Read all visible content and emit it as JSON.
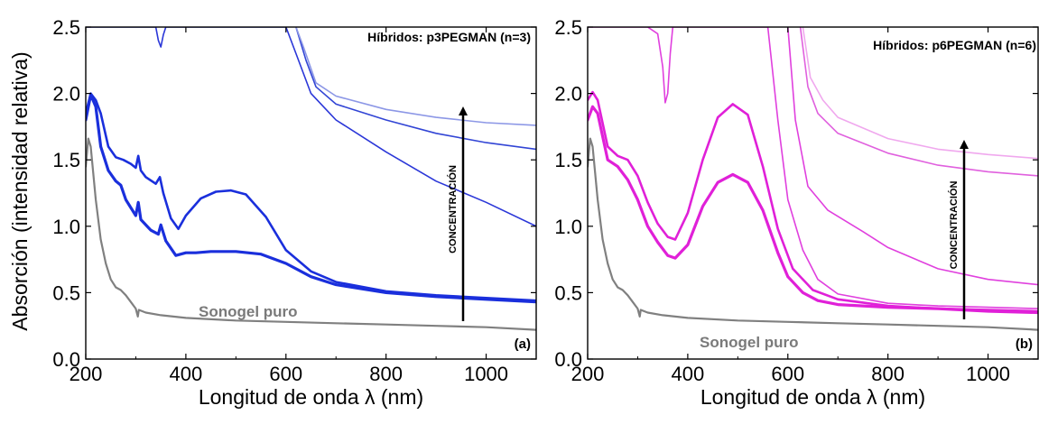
{
  "figure": {
    "ylabel": "Absorción (intensidad relativa)"
  },
  "chart_data": [
    {
      "type": "line",
      "panel_label": "(a)",
      "title": "Híbridos: p3PEGMAN (n=3)",
      "xlabel": "Longitud de onda λ (nm)",
      "ylabel": "Absorción (intensidad relativa)",
      "xlim": [
        200,
        1100
      ],
      "ylim": [
        0,
        2.5
      ],
      "xticks": [
        "200",
        "400",
        "600",
        "800",
        "1000"
      ],
      "yticks": [
        "0.0",
        "0.5",
        "1.0",
        "1.5",
        "2.0",
        "2.5"
      ],
      "annotation": "Sonogel puro",
      "arrow_label": "CONCENTRACIÓN",
      "series": [
        {
          "color": "#808080",
          "width": 2.2,
          "points": [
            [
              200,
              1.45
            ],
            [
              205,
              1.66
            ],
            [
              210,
              1.6
            ],
            [
              220,
              1.2
            ],
            [
              230,
              0.9
            ],
            [
              240,
              0.72
            ],
            [
              250,
              0.6
            ],
            [
              260,
              0.54
            ],
            [
              270,
              0.52
            ],
            [
              280,
              0.48
            ],
            [
              290,
              0.43
            ],
            [
              300,
              0.38
            ],
            [
              304,
              0.32
            ],
            [
              306,
              0.37
            ],
            [
              320,
              0.35
            ],
            [
              350,
              0.33
            ],
            [
              400,
              0.31
            ],
            [
              500,
              0.29
            ],
            [
              600,
              0.28
            ],
            [
              700,
              0.27
            ],
            [
              800,
              0.26
            ],
            [
              900,
              0.25
            ],
            [
              1000,
              0.24
            ],
            [
              1100,
              0.22
            ]
          ]
        },
        {
          "color": "#1a2fdc",
          "width": 3.2,
          "points": [
            [
              200,
              1.8
            ],
            [
              210,
              1.99
            ],
            [
              220,
              1.9
            ],
            [
              230,
              1.6
            ],
            [
              245,
              1.42
            ],
            [
              260,
              1.34
            ],
            [
              270,
              1.31
            ],
            [
              280,
              1.2
            ],
            [
              300,
              1.08
            ],
            [
              305,
              1.18
            ],
            [
              310,
              1.05
            ],
            [
              330,
              0.97
            ],
            [
              345,
              0.94
            ],
            [
              350,
              1.01
            ],
            [
              360,
              0.89
            ],
            [
              380,
              0.78
            ],
            [
              400,
              0.8
            ],
            [
              420,
              0.8
            ],
            [
              450,
              0.81
            ],
            [
              500,
              0.81
            ],
            [
              550,
              0.79
            ],
            [
              600,
              0.72
            ],
            [
              650,
              0.62
            ],
            [
              700,
              0.56
            ],
            [
              800,
              0.5
            ],
            [
              900,
              0.47
            ],
            [
              1000,
              0.45
            ],
            [
              1100,
              0.43
            ]
          ]
        },
        {
          "color": "#1a2fdc",
          "width": 2.6,
          "points": [
            [
              200,
              1.85
            ],
            [
              210,
              2.0
            ],
            [
              220,
              1.95
            ],
            [
              230,
              1.85
            ],
            [
              245,
              1.6
            ],
            [
              260,
              1.52
            ],
            [
              275,
              1.5
            ],
            [
              290,
              1.47
            ],
            [
              300,
              1.44
            ],
            [
              305,
              1.53
            ],
            [
              310,
              1.42
            ],
            [
              320,
              1.37
            ],
            [
              340,
              1.32
            ],
            [
              348,
              1.37
            ],
            [
              355,
              1.25
            ],
            [
              370,
              1.06
            ],
            [
              385,
              0.98
            ],
            [
              400,
              1.08
            ],
            [
              430,
              1.21
            ],
            [
              460,
              1.26
            ],
            [
              490,
              1.27
            ],
            [
              520,
              1.24
            ],
            [
              560,
              1.07
            ],
            [
              600,
              0.82
            ],
            [
              650,
              0.66
            ],
            [
              700,
              0.58
            ],
            [
              800,
              0.51
            ],
            [
              900,
              0.48
            ],
            [
              1000,
              0.46
            ],
            [
              1100,
              0.44
            ]
          ]
        },
        {
          "color": "#2b37d8",
          "width": 1.6,
          "points": [
            [
              200,
              2.5
            ],
            [
              340,
              2.5
            ],
            [
              345,
              2.4
            ],
            [
              350,
              2.35
            ],
            [
              355,
              2.44
            ],
            [
              360,
              2.5
            ],
            [
              600,
              2.5
            ],
            [
              620,
              2.3
            ],
            [
              650,
              2.0
            ],
            [
              700,
              1.8
            ],
            [
              800,
              1.56
            ],
            [
              900,
              1.34
            ],
            [
              1000,
              1.18
            ],
            [
              1100,
              1.0
            ]
          ]
        },
        {
          "color": "#3245d5",
          "width": 1.6,
          "points": [
            [
              620,
              2.5
            ],
            [
              640,
              2.25
            ],
            [
              660,
              2.05
            ],
            [
              700,
              1.92
            ],
            [
              800,
              1.8
            ],
            [
              900,
              1.7
            ],
            [
              1000,
              1.63
            ],
            [
              1100,
              1.58
            ]
          ]
        },
        {
          "color": "#8c97e6",
          "width": 1.6,
          "points": [
            [
              620,
              2.5
            ],
            [
              635,
              2.35
            ],
            [
              660,
              2.08
            ],
            [
              700,
              1.98
            ],
            [
              800,
              1.88
            ],
            [
              900,
              1.82
            ],
            [
              1000,
              1.78
            ],
            [
              1100,
              1.76
            ]
          ]
        }
      ]
    },
    {
      "type": "line",
      "panel_label": "(b)",
      "title": "Híbridos: p6PEGMAN (n=6)",
      "xlabel": "Longitud de onda λ (nm)",
      "ylabel": "",
      "xlim": [
        200,
        1100
      ],
      "ylim": [
        0,
        2.5
      ],
      "xticks": [
        "200",
        "400",
        "600",
        "800",
        "1000"
      ],
      "yticks": [
        "0.0",
        "0.5",
        "1.0",
        "1.5",
        "2.0",
        "2.5"
      ],
      "annotation": "Sonogel puro",
      "arrow_label": "CONCENTRACIÓN",
      "series": [
        {
          "color": "#808080",
          "width": 2.2,
          "points": [
            [
              200,
              1.45
            ],
            [
              205,
              1.66
            ],
            [
              210,
              1.6
            ],
            [
              220,
              1.2
            ],
            [
              230,
              0.9
            ],
            [
              240,
              0.72
            ],
            [
              250,
              0.6
            ],
            [
              260,
              0.54
            ],
            [
              270,
              0.52
            ],
            [
              280,
              0.48
            ],
            [
              290,
              0.43
            ],
            [
              300,
              0.38
            ],
            [
              304,
              0.32
            ],
            [
              306,
              0.37
            ],
            [
              320,
              0.35
            ],
            [
              350,
              0.33
            ],
            [
              400,
              0.31
            ],
            [
              500,
              0.29
            ],
            [
              600,
              0.28
            ],
            [
              700,
              0.27
            ],
            [
              800,
              0.26
            ],
            [
              900,
              0.25
            ],
            [
              1000,
              0.24
            ],
            [
              1100,
              0.22
            ]
          ]
        },
        {
          "color": "#e020d8",
          "width": 3.2,
          "points": [
            [
              200,
              1.8
            ],
            [
              210,
              1.9
            ],
            [
              220,
              1.85
            ],
            [
              240,
              1.5
            ],
            [
              260,
              1.45
            ],
            [
              280,
              1.35
            ],
            [
              300,
              1.2
            ],
            [
              320,
              1.0
            ],
            [
              340,
              0.88
            ],
            [
              360,
              0.78
            ],
            [
              375,
              0.76
            ],
            [
              400,
              0.86
            ],
            [
              430,
              1.15
            ],
            [
              460,
              1.33
            ],
            [
              490,
              1.39
            ],
            [
              520,
              1.33
            ],
            [
              550,
              1.12
            ],
            [
              580,
              0.8
            ],
            [
              600,
              0.62
            ],
            [
              630,
              0.5
            ],
            [
              660,
              0.44
            ],
            [
              700,
              0.41
            ],
            [
              800,
              0.39
            ],
            [
              900,
              0.38
            ],
            [
              1000,
              0.36
            ],
            [
              1100,
              0.35
            ]
          ]
        },
        {
          "color": "#e020d8",
          "width": 2.6,
          "points": [
            [
              200,
              1.95
            ],
            [
              210,
              2.01
            ],
            [
              220,
              1.95
            ],
            [
              240,
              1.6
            ],
            [
              260,
              1.53
            ],
            [
              280,
              1.5
            ],
            [
              300,
              1.38
            ],
            [
              320,
              1.18
            ],
            [
              340,
              1.02
            ],
            [
              360,
              0.92
            ],
            [
              375,
              0.9
            ],
            [
              400,
              1.1
            ],
            [
              430,
              1.5
            ],
            [
              460,
              1.82
            ],
            [
              490,
              1.92
            ],
            [
              520,
              1.84
            ],
            [
              550,
              1.45
            ],
            [
              580,
              0.98
            ],
            [
              610,
              0.68
            ],
            [
              650,
              0.52
            ],
            [
              700,
              0.45
            ],
            [
              800,
              0.4
            ],
            [
              900,
              0.38
            ],
            [
              1000,
              0.37
            ],
            [
              1100,
              0.36
            ]
          ]
        },
        {
          "color": "#e040de",
          "width": 1.6,
          "points": [
            [
              200,
              2.5
            ],
            [
              320,
              2.5
            ],
            [
              340,
              2.45
            ],
            [
              350,
              2.2
            ],
            [
              355,
              1.93
            ],
            [
              360,
              2.0
            ],
            [
              365,
              2.3
            ],
            [
              370,
              2.5
            ],
            [
              560,
              2.5
            ],
            [
              580,
              1.8
            ],
            [
              600,
              1.2
            ],
            [
              630,
              0.82
            ],
            [
              660,
              0.6
            ],
            [
              700,
              0.49
            ],
            [
              800,
              0.42
            ],
            [
              900,
              0.4
            ],
            [
              1000,
              0.39
            ],
            [
              1100,
              0.38
            ]
          ]
        },
        {
          "color": "#e040de",
          "width": 1.6,
          "points": [
            [
              600,
              2.5
            ],
            [
              615,
              1.8
            ],
            [
              640,
              1.3
            ],
            [
              680,
              1.12
            ],
            [
              750,
              0.96
            ],
            [
              800,
              0.84
            ],
            [
              900,
              0.68
            ],
            [
              1000,
              0.6
            ],
            [
              1100,
              0.56
            ]
          ]
        },
        {
          "color": "#e060de",
          "width": 1.6,
          "points": [
            [
              625,
              2.5
            ],
            [
              640,
              2.05
            ],
            [
              660,
              1.85
            ],
            [
              700,
              1.7
            ],
            [
              800,
              1.55
            ],
            [
              900,
              1.46
            ],
            [
              1000,
              1.41
            ],
            [
              1100,
              1.38
            ]
          ]
        },
        {
          "color": "#f0a8ee",
          "width": 1.6,
          "points": [
            [
              630,
              2.5
            ],
            [
              645,
              2.12
            ],
            [
              670,
              1.95
            ],
            [
              700,
              1.82
            ],
            [
              800,
              1.66
            ],
            [
              900,
              1.58
            ],
            [
              1000,
              1.54
            ],
            [
              1100,
              1.51
            ]
          ]
        }
      ]
    }
  ]
}
